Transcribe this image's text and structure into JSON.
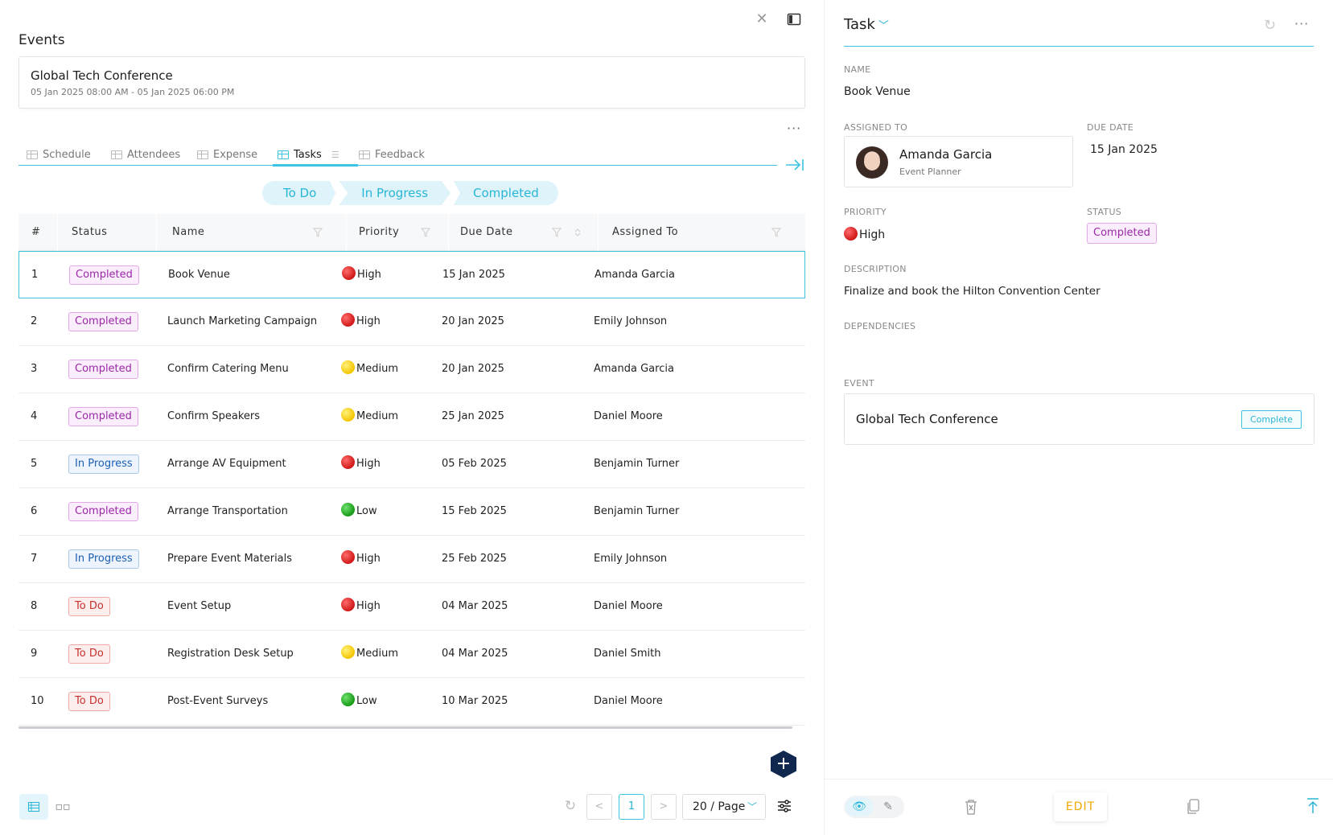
{
  "left": {
    "title": "Events",
    "event": {
      "name": "Global Tech Conference",
      "dates": "05 Jan 2025 08:00 AM - 05 Jan 2025 06:00 PM"
    },
    "tabs": [
      {
        "label": "Schedule",
        "active": false
      },
      {
        "label": "Attendees",
        "active": false
      },
      {
        "label": "Expense",
        "active": false
      },
      {
        "label": "Tasks",
        "active": true
      },
      {
        "label": "Feedback",
        "active": false
      }
    ],
    "stepper": [
      "To Do",
      "In Progress",
      "Completed"
    ],
    "table": {
      "columns": [
        "#",
        "Status",
        "Name",
        "Priority",
        "Due Date",
        "Assigned To"
      ],
      "rows": [
        {
          "num": "1",
          "status": "Completed",
          "name": "Book Venue",
          "priority": "High",
          "due": "15 Jan 2025",
          "assigned": "Amanda Garcia"
        },
        {
          "num": "2",
          "status": "Completed",
          "name": "Launch Marketing Campaign",
          "priority": "High",
          "due": "20 Jan 2025",
          "assigned": "Emily Johnson"
        },
        {
          "num": "3",
          "status": "Completed",
          "name": "Confirm Catering Menu",
          "priority": "Medium",
          "due": "20 Jan 2025",
          "assigned": "Amanda Garcia"
        },
        {
          "num": "4",
          "status": "Completed",
          "name": "Confirm Speakers",
          "priority": "Medium",
          "due": "25 Jan 2025",
          "assigned": "Daniel Moore"
        },
        {
          "num": "5",
          "status": "In Progress",
          "name": "Arrange AV Equipment",
          "priority": "High",
          "due": "05 Feb 2025",
          "assigned": "Benjamin Turner"
        },
        {
          "num": "6",
          "status": "Completed",
          "name": "Arrange Transportation",
          "priority": "Low",
          "due": "15 Feb 2025",
          "assigned": "Benjamin Turner"
        },
        {
          "num": "7",
          "status": "In Progress",
          "name": "Prepare Event Materials",
          "priority": "High",
          "due": "25 Feb 2025",
          "assigned": "Emily Johnson"
        },
        {
          "num": "8",
          "status": "To Do",
          "name": "Event Setup",
          "priority": "High",
          "due": "04 Mar 2025",
          "assigned": "Daniel Moore"
        },
        {
          "num": "9",
          "status": "To Do",
          "name": "Registration Desk Setup",
          "priority": "Medium",
          "due": "04 Mar 2025",
          "assigned": "Daniel Smith"
        },
        {
          "num": "10",
          "status": "To Do",
          "name": "Post-Event Surveys",
          "priority": "Low",
          "due": "10 Mar 2025",
          "assigned": "Daniel Moore"
        }
      ]
    },
    "pagination": {
      "prev": "<",
      "page": "1",
      "next": ">",
      "page_size": "20 / Page"
    },
    "fab_label": "+"
  },
  "right": {
    "title": "Task",
    "name_label": "NAME",
    "name_value": "Book Venue",
    "assigned_label": "ASSIGNED TO",
    "assignee_name": "Amanda Garcia",
    "assignee_role": "Event Planner",
    "due_label": "DUE DATE",
    "due_value": "15 Jan 2025",
    "priority_label": "PRIORITY",
    "priority_value": "High",
    "status_label": "STATUS",
    "status_value": "Completed",
    "description_label": "DESCRIPTION",
    "description_value": "Finalize and book the Hilton Convention Center",
    "dependencies_label": "DEPENDENCIES",
    "event_label": "EVENT",
    "event_name": "Global Tech Conference",
    "event_action": "Complete",
    "edit_label": "EDIT"
  },
  "colors": {
    "accent": "#3cc3e0",
    "completed": "#9b27a8",
    "in_progress": "#1d5fb3",
    "todo": "#c8302e",
    "edit": "#f0a800",
    "fab": "#10284f"
  }
}
